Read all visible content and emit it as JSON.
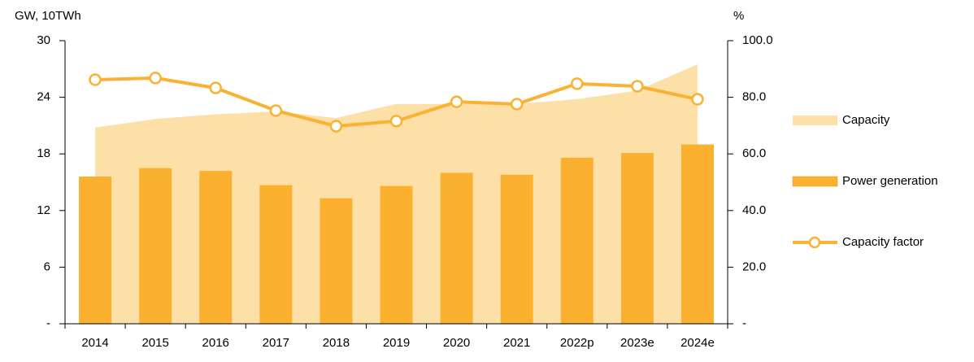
{
  "chart_data": {
    "type": "combo",
    "y_label": "GW, 10TWh",
    "y2_label": "%",
    "categories": [
      "2014",
      "2015",
      "2016",
      "2017",
      "2018",
      "2019",
      "2020",
      "2021",
      "2022p",
      "2023e",
      "2024e"
    ],
    "series": [
      {
        "name": "Capacity",
        "type": "area",
        "color": "#fde0a8",
        "values": [
          20.8,
          21.7,
          22.2,
          22.5,
          21.8,
          23.3,
          23.3,
          23.3,
          23.8,
          24.7,
          27.5
        ]
      },
      {
        "name": "Power generation",
        "type": "bar",
        "color": "#fbb12f",
        "values": [
          15.6,
          16.5,
          16.2,
          14.7,
          13.3,
          14.6,
          16.0,
          15.8,
          17.6,
          18.1,
          19.0
        ]
      },
      {
        "name": "Capacity factor",
        "type": "line",
        "axis": "y2",
        "color": "#f9b233",
        "values": [
          86.2,
          86.8,
          83.3,
          75.3,
          69.8,
          71.6,
          78.4,
          77.6,
          84.8,
          83.9,
          79.3
        ]
      }
    ],
    "ylim": [
      0,
      30
    ],
    "yticks": [
      {
        "value": 0,
        "label": "-"
      },
      6,
      12,
      18,
      24,
      30
    ],
    "y2lim": [
      0,
      100
    ],
    "y2ticks": [
      {
        "value": 0,
        "label": "-"
      },
      {
        "value": 20,
        "label": "20.0"
      },
      {
        "value": 40,
        "label": "40.0"
      },
      {
        "value": 60,
        "label": "60.0"
      },
      {
        "value": 80,
        "label": "80.0"
      },
      {
        "value": 100,
        "label": "100.0"
      }
    ],
    "legend_position": "right"
  }
}
